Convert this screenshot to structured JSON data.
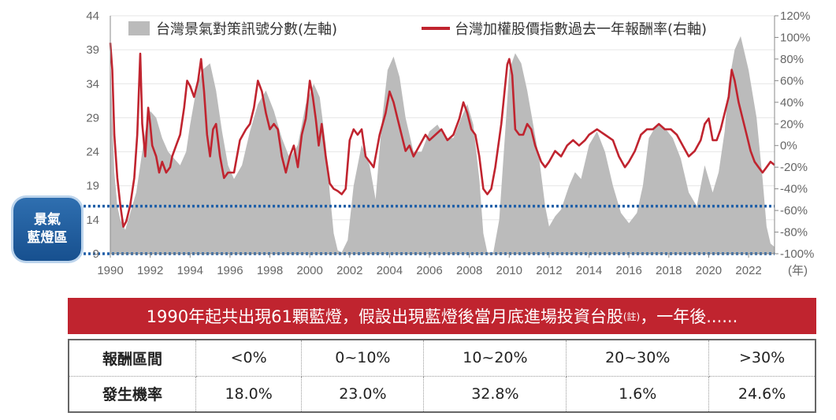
{
  "chart_data": {
    "type": "area+line",
    "x_range": [
      1990,
      2023.3
    ],
    "x_ticks": [
      {
        "value": 1990,
        "label": "1990"
      },
      {
        "value": 1992,
        "label": "1992"
      },
      {
        "value": 1994,
        "label": "1994"
      },
      {
        "value": 1996,
        "label": "1996"
      },
      {
        "value": 1998,
        "label": "1998"
      },
      {
        "value": 2000,
        "label": "2000"
      },
      {
        "value": 2002,
        "label": "2002"
      },
      {
        "value": 2004,
        "label": "2004"
      },
      {
        "value": 2006,
        "label": "2006"
      },
      {
        "value": 2008,
        "label": "2008"
      },
      {
        "value": 2010,
        "label": "2010"
      },
      {
        "value": 2012,
        "label": "2012"
      },
      {
        "value": 2014,
        "label": "2014"
      },
      {
        "value": 2016,
        "label": "2016"
      },
      {
        "value": 2018,
        "label": "2018"
      },
      {
        "value": 2020,
        "label": "2020"
      },
      {
        "value": 2022,
        "label": "2022"
      }
    ],
    "x_unit_label": "(年)",
    "y_left": {
      "min": 9,
      "max": 44,
      "ticks": [
        {
          "value": 9,
          "label": "9"
        },
        {
          "value": 14,
          "label": "14"
        },
        {
          "value": 19,
          "label": "19"
        },
        {
          "value": 24,
          "label": "24"
        },
        {
          "value": 29,
          "label": "29"
        },
        {
          "value": 34,
          "label": "34"
        },
        {
          "value": 39,
          "label": "39"
        },
        {
          "value": 44,
          "label": "44"
        }
      ]
    },
    "y_right": {
      "min": -100,
      "max": 120,
      "ticks": [
        {
          "value": -100,
          "label": "-100%"
        },
        {
          "value": -80,
          "label": "-80%"
        },
        {
          "value": -60,
          "label": "-60%"
        },
        {
          "value": -40,
          "label": "-40%"
        },
        {
          "value": -20,
          "label": "-20%"
        },
        {
          "value": 0,
          "label": "0%"
        },
        {
          "value": 20,
          "label": "20%"
        },
        {
          "value": 40,
          "label": "40%"
        },
        {
          "value": 60,
          "label": "60%"
        },
        {
          "value": 80,
          "label": "80%"
        },
        {
          "value": 100,
          "label": "100%"
        },
        {
          "value": 120,
          "label": "120%"
        }
      ]
    },
    "blue_band": {
      "low": 9,
      "high": 16
    },
    "series": [
      {
        "name": "台灣景氣對策訊號分數(左軸)",
        "axis": "left",
        "style": "area",
        "color": "#bbbbbb",
        "points": [
          [
            1990.0,
            38
          ],
          [
            1990.1,
            29
          ],
          [
            1990.2,
            21
          ],
          [
            1990.35,
            16
          ],
          [
            1990.5,
            14
          ],
          [
            1990.75,
            12.5
          ],
          [
            1991.0,
            15
          ],
          [
            1991.3,
            18
          ],
          [
            1991.5,
            22
          ],
          [
            1991.75,
            27
          ],
          [
            1992.0,
            30
          ],
          [
            1992.3,
            29
          ],
          [
            1992.6,
            26
          ],
          [
            1992.9,
            24
          ],
          [
            1993.2,
            23
          ],
          [
            1993.5,
            22
          ],
          [
            1993.8,
            24
          ],
          [
            1994.0,
            28
          ],
          [
            1994.3,
            33
          ],
          [
            1994.6,
            36
          ],
          [
            1995.0,
            37
          ],
          [
            1995.3,
            33
          ],
          [
            1995.6,
            27
          ],
          [
            1995.9,
            22
          ],
          [
            1996.2,
            20
          ],
          [
            1996.6,
            22
          ],
          [
            1997.0,
            27
          ],
          [
            1997.4,
            31
          ],
          [
            1997.8,
            33
          ],
          [
            1998.2,
            30
          ],
          [
            1998.6,
            26
          ],
          [
            1999.0,
            23
          ],
          [
            1999.4,
            25
          ],
          [
            1999.8,
            31
          ],
          [
            2000.2,
            34
          ],
          [
            2000.5,
            32
          ],
          [
            2000.8,
            25
          ],
          [
            2001.0,
            18
          ],
          [
            2001.2,
            12
          ],
          [
            2001.4,
            9.5
          ],
          [
            2001.6,
            9.2
          ],
          [
            2001.9,
            11
          ],
          [
            2002.2,
            19
          ],
          [
            2002.6,
            25
          ],
          [
            2003.0,
            22
          ],
          [
            2003.3,
            17
          ],
          [
            2003.6,
            28
          ],
          [
            2003.9,
            36
          ],
          [
            2004.2,
            38
          ],
          [
            2004.5,
            35
          ],
          [
            2004.8,
            29
          ],
          [
            2005.2,
            24
          ],
          [
            2005.6,
            24
          ],
          [
            2006.0,
            27
          ],
          [
            2006.4,
            28
          ],
          [
            2006.8,
            26
          ],
          [
            2007.2,
            26
          ],
          [
            2007.6,
            29
          ],
          [
            2007.9,
            31
          ],
          [
            2008.2,
            28
          ],
          [
            2008.5,
            20
          ],
          [
            2008.7,
            12
          ],
          [
            2008.9,
            9.2
          ],
          [
            2009.2,
            9.2
          ],
          [
            2009.5,
            14
          ],
          [
            2009.8,
            27
          ],
          [
            2010.0,
            36
          ],
          [
            2010.3,
            38.5
          ],
          [
            2010.6,
            37
          ],
          [
            2010.9,
            33
          ],
          [
            2011.2,
            28
          ],
          [
            2011.5,
            23
          ],
          [
            2011.8,
            16
          ],
          [
            2012.0,
            13
          ],
          [
            2012.3,
            14.5
          ],
          [
            2012.6,
            15.5
          ],
          [
            2013.0,
            19
          ],
          [
            2013.3,
            21
          ],
          [
            2013.6,
            20
          ],
          [
            2014.0,
            25
          ],
          [
            2014.4,
            27
          ],
          [
            2014.8,
            24
          ],
          [
            2015.2,
            19
          ],
          [
            2015.6,
            15
          ],
          [
            2016.0,
            13.5
          ],
          [
            2016.4,
            15
          ],
          [
            2016.7,
            19
          ],
          [
            2017.0,
            26
          ],
          [
            2017.4,
            28
          ],
          [
            2017.8,
            27.5
          ],
          [
            2018.2,
            26
          ],
          [
            2018.6,
            23
          ],
          [
            2019.0,
            18
          ],
          [
            2019.4,
            16
          ],
          [
            2019.8,
            22
          ],
          [
            2020.2,
            18
          ],
          [
            2020.5,
            21
          ],
          [
            2020.8,
            27
          ],
          [
            2021.0,
            34
          ],
          [
            2021.3,
            39
          ],
          [
            2021.6,
            41
          ],
          [
            2022.0,
            36
          ],
          [
            2022.4,
            29
          ],
          [
            2022.7,
            20
          ],
          [
            2022.9,
            13
          ],
          [
            2023.1,
            10.5
          ],
          [
            2023.3,
            10
          ]
        ]
      },
      {
        "name": "台灣加權股價指數過去一年報酬率(右軸)",
        "axis": "right",
        "style": "line",
        "color": "#c0242f",
        "points": [
          [
            1990.0,
            95
          ],
          [
            1990.1,
            70
          ],
          [
            1990.2,
            10
          ],
          [
            1990.35,
            -30
          ],
          [
            1990.5,
            -55
          ],
          [
            1990.65,
            -75
          ],
          [
            1990.8,
            -70
          ],
          [
            1991.0,
            -55
          ],
          [
            1991.2,
            -30
          ],
          [
            1991.35,
            10
          ],
          [
            1991.5,
            85
          ],
          [
            1991.6,
            20
          ],
          [
            1991.75,
            -10
          ],
          [
            1991.9,
            35
          ],
          [
            1992.0,
            20
          ],
          [
            1992.1,
            0
          ],
          [
            1992.3,
            -10
          ],
          [
            1992.45,
            -25
          ],
          [
            1992.6,
            -15
          ],
          [
            1992.8,
            -25
          ],
          [
            1993.0,
            -20
          ],
          [
            1993.1,
            -10
          ],
          [
            1993.3,
            0
          ],
          [
            1993.5,
            10
          ],
          [
            1993.7,
            35
          ],
          [
            1993.85,
            60
          ],
          [
            1994.0,
            55
          ],
          [
            1994.2,
            45
          ],
          [
            1994.4,
            60
          ],
          [
            1994.55,
            80
          ],
          [
            1994.7,
            50
          ],
          [
            1994.85,
            10
          ],
          [
            1995.0,
            -10
          ],
          [
            1995.15,
            15
          ],
          [
            1995.3,
            20
          ],
          [
            1995.5,
            -10
          ],
          [
            1995.7,
            -30
          ],
          [
            1995.9,
            -25
          ],
          [
            1996.2,
            -25
          ],
          [
            1996.5,
            5
          ],
          [
            1996.8,
            15
          ],
          [
            1997.0,
            20
          ],
          [
            1997.2,
            35
          ],
          [
            1997.4,
            60
          ],
          [
            1997.6,
            50
          ],
          [
            1997.8,
            30
          ],
          [
            1998.0,
            15
          ],
          [
            1998.2,
            20
          ],
          [
            1998.4,
            15
          ],
          [
            1998.6,
            -10
          ],
          [
            1998.8,
            -25
          ],
          [
            1999.0,
            -10
          ],
          [
            1999.2,
            0
          ],
          [
            1999.4,
            -20
          ],
          [
            1999.6,
            10
          ],
          [
            1999.8,
            25
          ],
          [
            2000.0,
            60
          ],
          [
            2000.15,
            45
          ],
          [
            2000.3,
            25
          ],
          [
            2000.45,
            0
          ],
          [
            2000.6,
            20
          ],
          [
            2000.8,
            -10
          ],
          [
            2001.0,
            -35
          ],
          [
            2001.2,
            -40
          ],
          [
            2001.4,
            -42
          ],
          [
            2001.6,
            -45
          ],
          [
            2001.8,
            -40
          ],
          [
            2002.0,
            5
          ],
          [
            2002.2,
            15
          ],
          [
            2002.4,
            10
          ],
          [
            2002.6,
            15
          ],
          [
            2002.8,
            -10
          ],
          [
            2003.0,
            -15
          ],
          [
            2003.2,
            -20
          ],
          [
            2003.5,
            10
          ],
          [
            2003.8,
            30
          ],
          [
            2004.0,
            50
          ],
          [
            2004.2,
            40
          ],
          [
            2004.4,
            25
          ],
          [
            2004.6,
            10
          ],
          [
            2004.8,
            -5
          ],
          [
            2005.0,
            0
          ],
          [
            2005.2,
            -10
          ],
          [
            2005.5,
            0
          ],
          [
            2005.8,
            10
          ],
          [
            2006.0,
            5
          ],
          [
            2006.3,
            10
          ],
          [
            2006.6,
            15
          ],
          [
            2006.9,
            5
          ],
          [
            2007.2,
            10
          ],
          [
            2007.5,
            25
          ],
          [
            2007.7,
            40
          ],
          [
            2007.9,
            30
          ],
          [
            2008.1,
            15
          ],
          [
            2008.3,
            10
          ],
          [
            2008.5,
            -10
          ],
          [
            2008.7,
            -40
          ],
          [
            2008.9,
            -45
          ],
          [
            2009.1,
            -40
          ],
          [
            2009.3,
            -20
          ],
          [
            2009.6,
            20
          ],
          [
            2009.9,
            75
          ],
          [
            2010.0,
            80
          ],
          [
            2010.15,
            65
          ],
          [
            2010.3,
            15
          ],
          [
            2010.5,
            10
          ],
          [
            2010.7,
            10
          ],
          [
            2010.9,
            20
          ],
          [
            2011.1,
            15
          ],
          [
            2011.3,
            0
          ],
          [
            2011.6,
            -15
          ],
          [
            2011.8,
            -20
          ],
          [
            2012.0,
            -15
          ],
          [
            2012.3,
            -5
          ],
          [
            2012.6,
            -10
          ],
          [
            2012.9,
            0
          ],
          [
            2013.2,
            5
          ],
          [
            2013.5,
            0
          ],
          [
            2013.8,
            5
          ],
          [
            2014.0,
            10
          ],
          [
            2014.4,
            15
          ],
          [
            2014.8,
            10
          ],
          [
            2015.2,
            5
          ],
          [
            2015.5,
            -10
          ],
          [
            2015.8,
            -20
          ],
          [
            2016.0,
            -15
          ],
          [
            2016.3,
            -5
          ],
          [
            2016.6,
            10
          ],
          [
            2016.9,
            15
          ],
          [
            2017.2,
            15
          ],
          [
            2017.5,
            20
          ],
          [
            2017.8,
            15
          ],
          [
            2018.1,
            15
          ],
          [
            2018.4,
            10
          ],
          [
            2018.7,
            0
          ],
          [
            2019.0,
            -10
          ],
          [
            2019.3,
            -5
          ],
          [
            2019.6,
            5
          ],
          [
            2019.8,
            20
          ],
          [
            2020.0,
            25
          ],
          [
            2020.2,
            5
          ],
          [
            2020.4,
            5
          ],
          [
            2020.6,
            15
          ],
          [
            2020.8,
            30
          ],
          [
            2021.0,
            45
          ],
          [
            2021.15,
            70
          ],
          [
            2021.3,
            60
          ],
          [
            2021.5,
            40
          ],
          [
            2021.7,
            25
          ],
          [
            2021.9,
            10
          ],
          [
            2022.1,
            -5
          ],
          [
            2022.3,
            -15
          ],
          [
            2022.5,
            -20
          ],
          [
            2022.7,
            -25
          ],
          [
            2022.9,
            -20
          ],
          [
            2023.1,
            -15
          ],
          [
            2023.3,
            -18
          ]
        ]
      }
    ]
  },
  "callout": {
    "line1": "景氣",
    "line2": "藍燈區"
  },
  "banner": {
    "text": "1990年起共出現61顆藍燈，假設出現藍燈後當月底進場投資台股",
    "note": "(註)",
    "tail": "，一年後......"
  },
  "table": {
    "row1_label": "報酬區間",
    "row2_label": "發生機率",
    "ranges": [
      "<0%",
      "0~10%",
      "10~20%",
      "20~30%",
      ">30%"
    ],
    "probabilities": [
      "18.0%",
      "23.0%",
      "32.8%",
      "1.6%",
      "24.6%"
    ]
  }
}
